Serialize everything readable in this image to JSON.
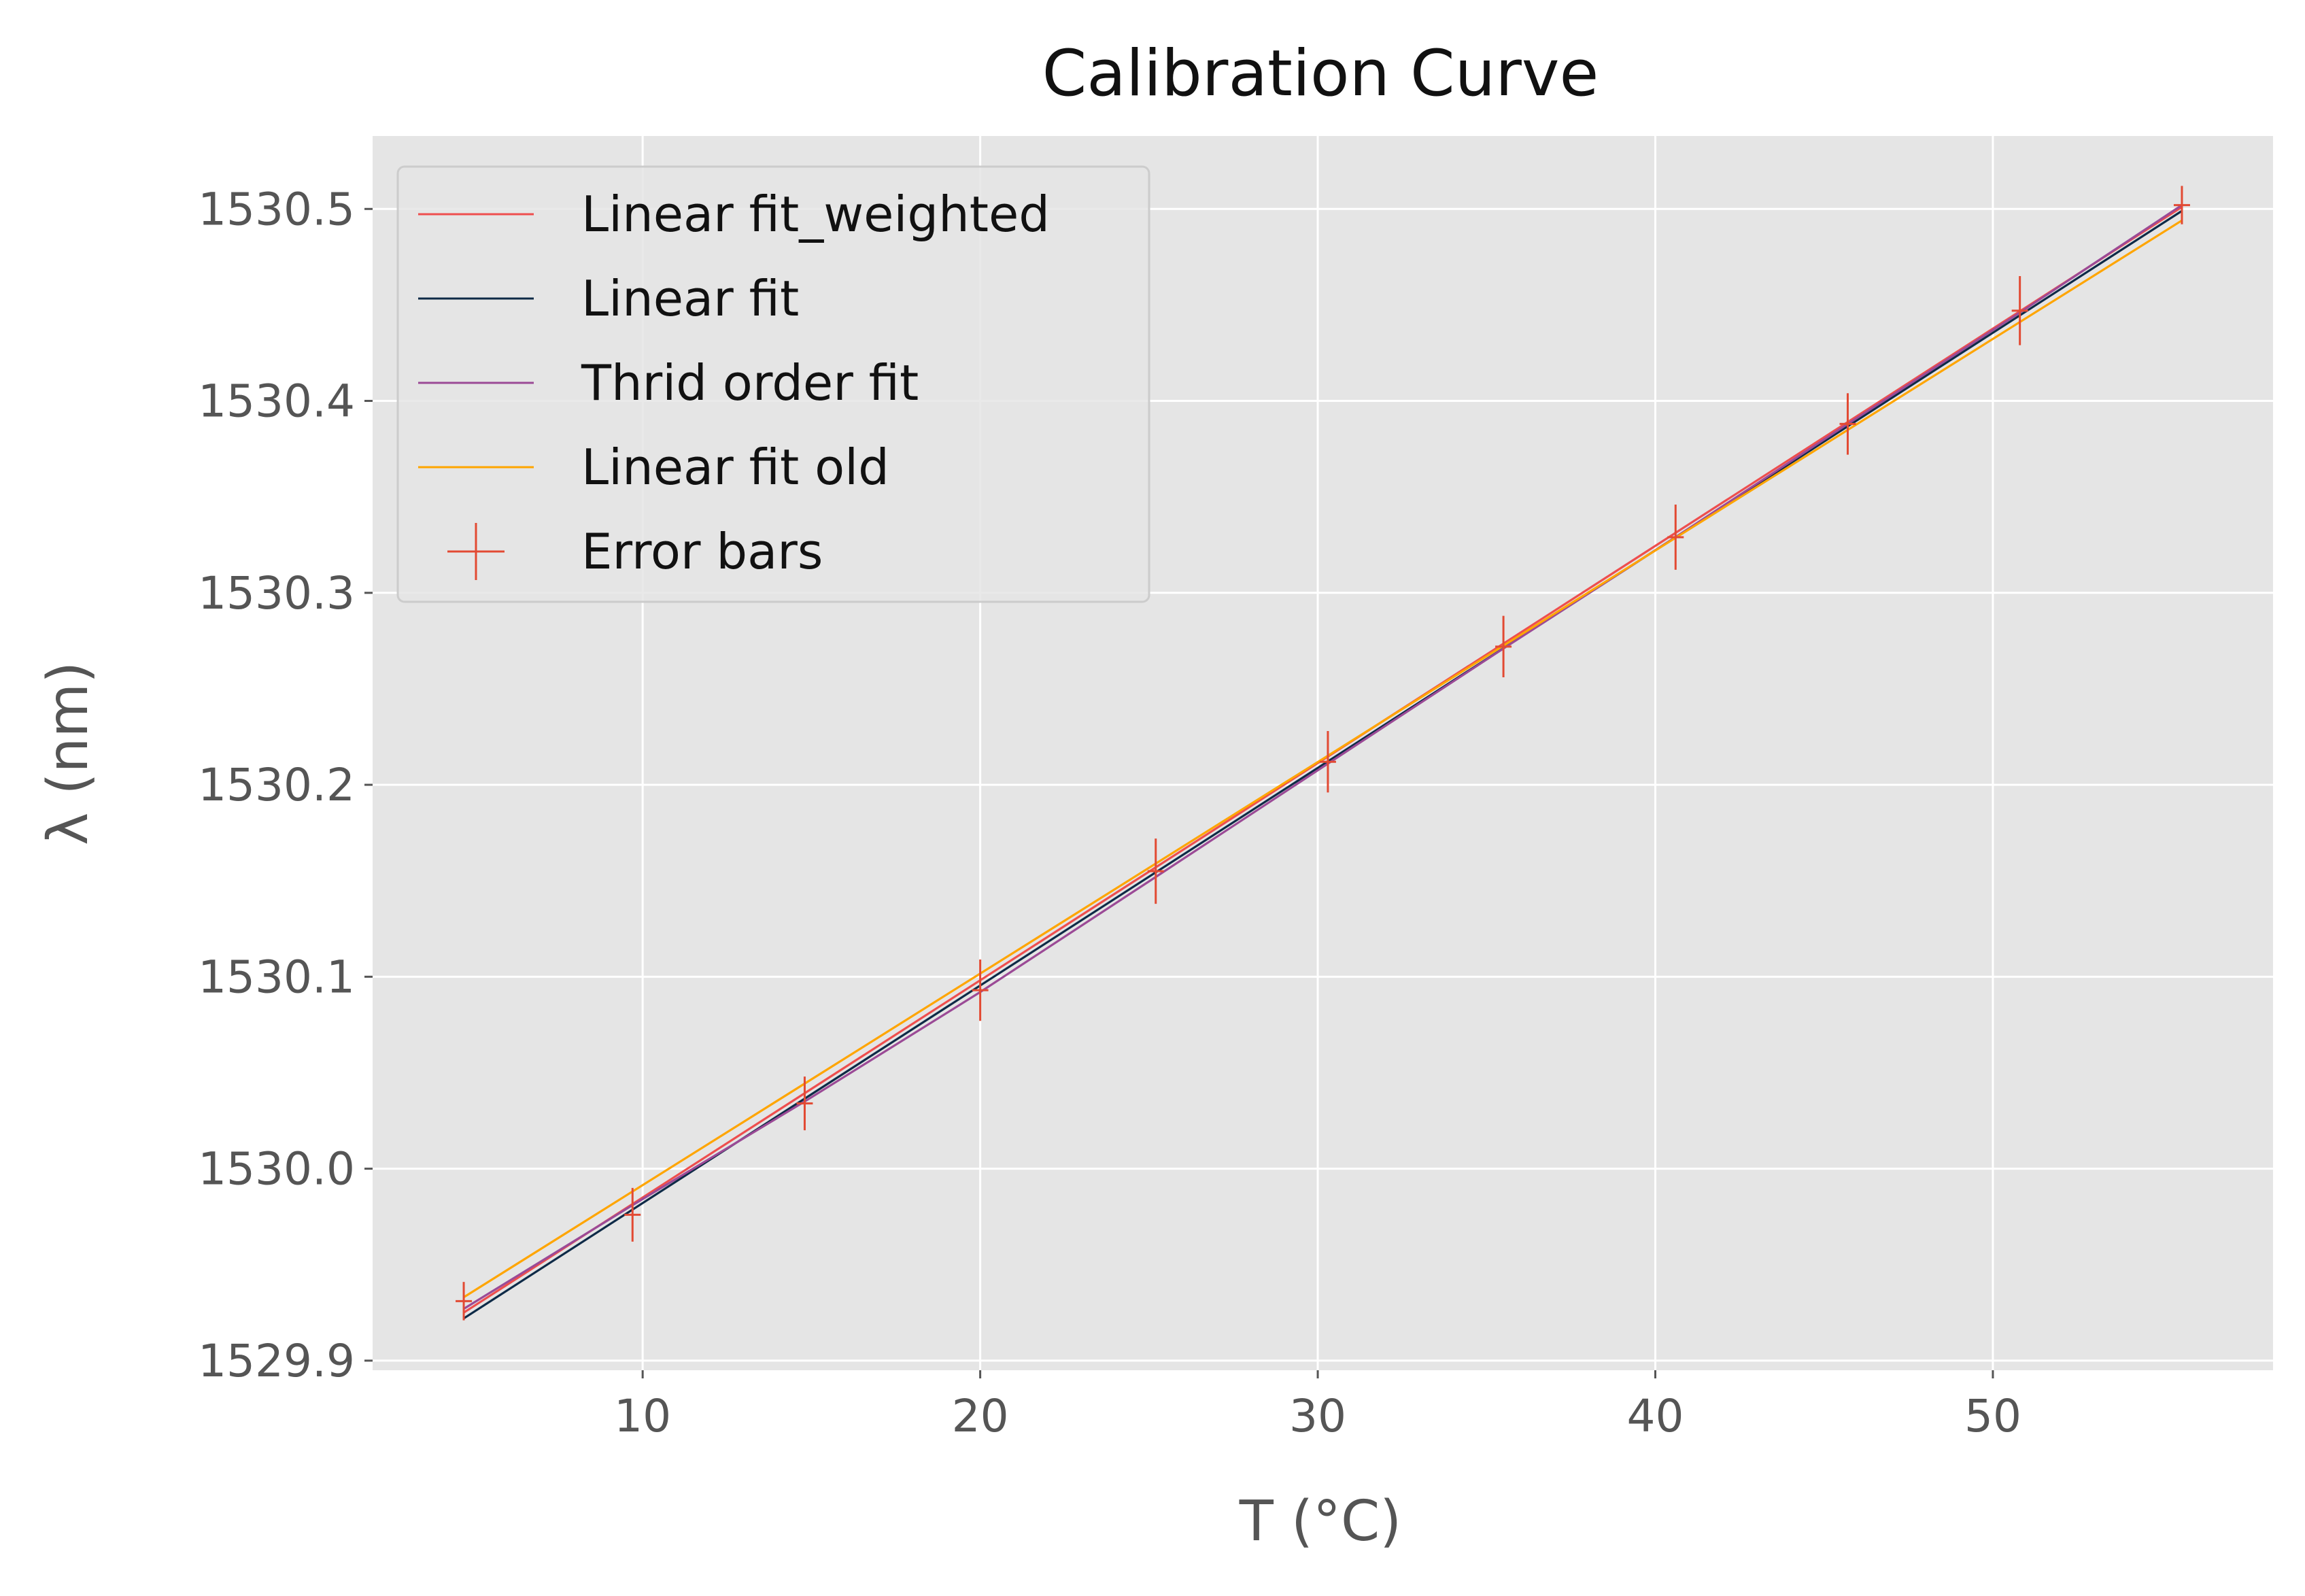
{
  "chart_data": {
    "type": "line",
    "title": "Calibration Curve",
    "xlabel": "T (°C)",
    "ylabel": "λ (nm)",
    "xlim": [
      2,
      58.3
    ],
    "ylim": [
      1529.895,
      1530.538
    ],
    "x_ticks": [
      10,
      20,
      30,
      40,
      50
    ],
    "x_tick_labels": [
      "10",
      "20",
      "30",
      "40",
      "50"
    ],
    "y_ticks": [
      1529.9,
      1530.0,
      1530.1,
      1530.2,
      1530.3,
      1530.4,
      1530.5
    ],
    "y_tick_labels": [
      "1529.9",
      "1530.0",
      "1530.1",
      "1530.2",
      "1530.3",
      "1530.4",
      "1530.5"
    ],
    "grid": true,
    "legend_position": "top-left",
    "series": [
      {
        "name": "Linear fit_weighted",
        "kind": "line",
        "color": "#ee4e4e",
        "x": [
          4.7,
          55.6
        ],
        "y": [
          1529.925,
          1530.501
        ]
      },
      {
        "name": "Linear fit",
        "kind": "line",
        "color": "#0e2a47",
        "x": [
          4.7,
          55.6
        ],
        "y": [
          1529.922,
          1530.499
        ]
      },
      {
        "name": "Thrid order fit",
        "kind": "line",
        "color": "#9b4a96",
        "x": [
          4.7,
          9.7,
          14.8,
          20.0,
          25.2,
          30.3,
          35.5,
          40.6,
          45.7,
          50.8,
          55.6
        ],
        "y": [
          1529.927,
          1529.981,
          1530.035,
          1530.092,
          1530.152,
          1530.211,
          1530.271,
          1530.329,
          1530.388,
          1530.446,
          1530.502
        ]
      },
      {
        "name": "Linear fit old",
        "kind": "line",
        "color": "#ffa500",
        "x": [
          4.7,
          55.6
        ],
        "y": [
          1529.933,
          1530.494
        ]
      },
      {
        "name": "Error bars",
        "kind": "errorbar",
        "color": "#e24a33",
        "x": [
          4.7,
          9.7,
          14.8,
          20.0,
          25.2,
          30.3,
          35.5,
          40.6,
          45.7,
          50.8,
          55.6
        ],
        "y": [
          1529.931,
          1529.976,
          1530.034,
          1530.093,
          1530.155,
          1530.212,
          1530.272,
          1530.329,
          1530.388,
          1530.447,
          1530.502
        ],
        "yerr": [
          0.01,
          0.014,
          0.014,
          0.016,
          0.017,
          0.016,
          0.016,
          0.017,
          0.016,
          0.018,
          0.01
        ]
      }
    ]
  }
}
